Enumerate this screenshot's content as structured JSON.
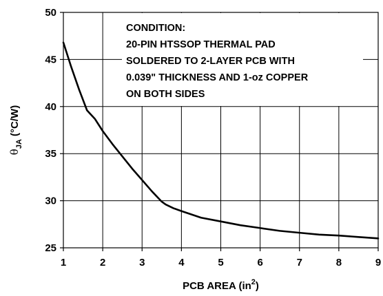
{
  "chart_data": {
    "type": "line",
    "title": "",
    "xlabel": {
      "main": "PCB AREA (in",
      "sup": "2",
      "end": ")"
    },
    "ylabel": {
      "symbol": "θ",
      "sub": "JA",
      "units": " (°C/W)"
    },
    "xlim": [
      1,
      9
    ],
    "ylim": [
      25,
      50
    ],
    "xticks": [
      "1",
      "2",
      "3",
      "4",
      "5",
      "6",
      "7",
      "8",
      "9"
    ],
    "yticks": [
      "25",
      "30",
      "35",
      "40",
      "45",
      "50"
    ],
    "grid": true,
    "series": [
      {
        "x": [
          1.0,
          1.2,
          1.4,
          1.6,
          1.8,
          2.0,
          2.25,
          2.5,
          2.75,
          3.0,
          3.25,
          3.5,
          3.6,
          3.8,
          4.0,
          4.5,
          5.0,
          5.5,
          6.0,
          6.5,
          7.0,
          7.5,
          8.0,
          8.5,
          9.0
        ],
        "y": [
          46.8,
          44.2,
          41.8,
          39.6,
          38.7,
          37.4,
          36.0,
          34.7,
          33.4,
          32.2,
          31.0,
          29.9,
          29.6,
          29.2,
          28.9,
          28.2,
          27.8,
          27.4,
          27.1,
          26.8,
          26.6,
          26.4,
          26.3,
          26.15,
          26.0
        ],
        "color": "#000000"
      }
    ],
    "annotation": {
      "lines": [
        "CONDITION:",
        "20-PIN HTSSOP THERMAL PAD",
        "SOLDERED TO 2-LAYER PCB WITH",
        "0.039\" THICKNESS AND 1-oz COPPER",
        "ON BOTH SIDES"
      ]
    }
  }
}
